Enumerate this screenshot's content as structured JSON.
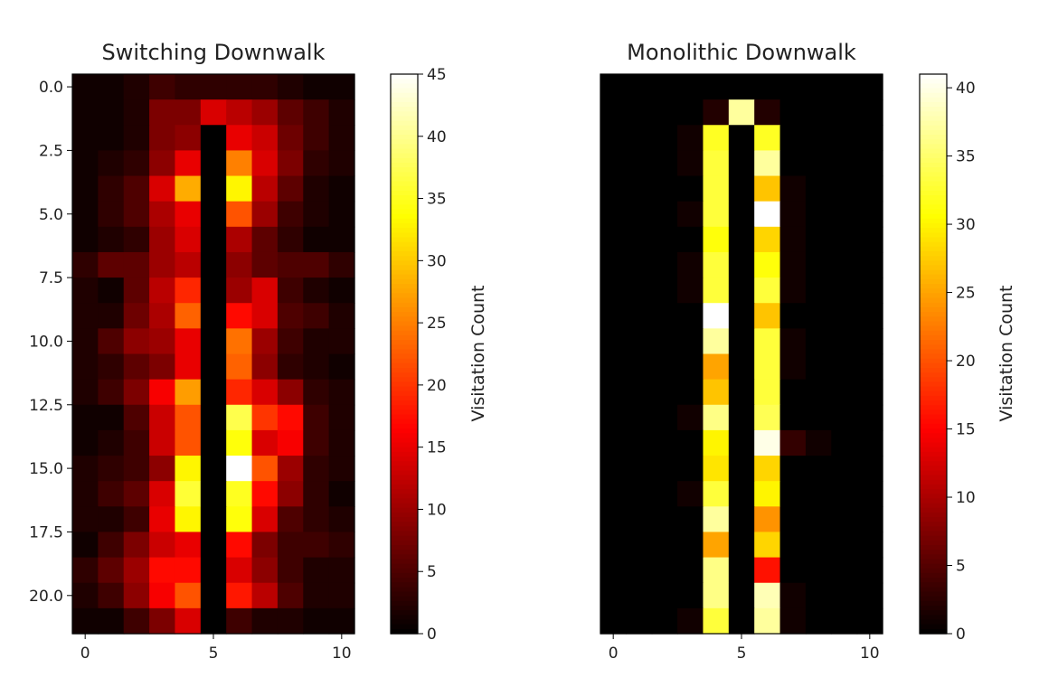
{
  "chart_data": [
    {
      "type": "heatmap",
      "title": "Switching Downwalk",
      "colormap": "hot",
      "colorbar_label": "Visitation Count",
      "vmin": 0,
      "vmax": 45,
      "colorbar_ticks": [
        "0",
        "5",
        "10",
        "15",
        "20",
        "25",
        "30",
        "35",
        "40",
        "45"
      ],
      "x_ticks": [
        "0",
        "5",
        "10"
      ],
      "y_ticks": [
        "0.0",
        "2.5",
        "5.0",
        "7.5",
        "10.0",
        "12.5",
        "15.0",
        "17.5",
        "20.0"
      ],
      "xlim": [
        -0.5,
        10.5
      ],
      "ylim": [
        -0.5,
        21.5
      ],
      "values": [
        [
          1,
          1,
          2,
          4,
          3,
          3,
          3,
          3,
          2,
          1,
          1
        ],
        [
          1,
          1,
          2,
          8,
          8,
          14,
          12,
          10,
          6,
          4,
          2
        ],
        [
          1,
          1,
          2,
          8,
          9,
          0,
          15,
          13,
          7,
          4,
          2
        ],
        [
          1,
          2,
          3,
          9,
          15,
          0,
          25,
          14,
          8,
          3,
          2
        ],
        [
          1,
          3,
          5,
          14,
          28,
          0,
          33,
          12,
          6,
          2,
          1
        ],
        [
          1,
          3,
          5,
          11,
          15,
          0,
          22,
          10,
          4,
          2,
          1
        ],
        [
          1,
          2,
          3,
          10,
          14,
          0,
          11,
          6,
          3,
          1,
          1
        ],
        [
          3,
          6,
          6,
          10,
          12,
          0,
          9,
          6,
          5,
          5,
          3
        ],
        [
          2,
          1,
          6,
          12,
          19,
          0,
          10,
          14,
          4,
          2,
          1
        ],
        [
          2,
          2,
          7,
          11,
          23,
          0,
          17,
          14,
          5,
          4,
          2
        ],
        [
          2,
          5,
          9,
          10,
          15,
          0,
          24,
          10,
          4,
          2,
          2
        ],
        [
          2,
          3,
          6,
          8,
          15,
          0,
          23,
          9,
          3,
          2,
          1
        ],
        [
          2,
          4,
          8,
          16,
          27,
          0,
          19,
          14,
          9,
          3,
          2
        ],
        [
          1,
          1,
          5,
          13,
          22,
          0,
          37,
          20,
          17,
          4,
          2
        ],
        [
          1,
          2,
          4,
          13,
          22,
          0,
          34,
          14,
          16,
          4,
          2
        ],
        [
          2,
          3,
          4,
          9,
          33,
          0,
          45,
          22,
          10,
          3,
          2
        ],
        [
          2,
          4,
          6,
          14,
          36,
          0,
          35,
          17,
          9,
          3,
          1
        ],
        [
          2,
          2,
          4,
          15,
          33,
          0,
          34,
          14,
          5,
          3,
          2
        ],
        [
          1,
          4,
          8,
          13,
          15,
          0,
          17,
          8,
          4,
          4,
          3
        ],
        [
          3,
          6,
          10,
          17,
          17,
          0,
          14,
          9,
          4,
          2,
          2
        ],
        [
          2,
          4,
          9,
          16,
          22,
          0,
          18,
          12,
          5,
          2,
          2
        ],
        [
          1,
          1,
          4,
          8,
          14,
          0,
          4,
          2,
          2,
          1,
          1
        ]
      ]
    },
    {
      "type": "heatmap",
      "title": "Monolithic Downwalk",
      "colormap": "hot",
      "colorbar_label": "Visitation Count",
      "vmin": 0,
      "vmax": 41,
      "colorbar_ticks": [
        "0",
        "5",
        "10",
        "15",
        "20",
        "25",
        "30",
        "35",
        "40"
      ],
      "x_ticks": [
        "0",
        "5",
        "10"
      ],
      "y_ticks": [],
      "xlim": [
        -0.5,
        10.5
      ],
      "ylim": [
        -0.5,
        21.5
      ],
      "values": [
        [
          0,
          0,
          0,
          0,
          0,
          0,
          0,
          0,
          0,
          0,
          0
        ],
        [
          0,
          0,
          0,
          0,
          2,
          37,
          2,
          0,
          0,
          0,
          0
        ],
        [
          0,
          0,
          0,
          1,
          32,
          0,
          32,
          0,
          0,
          0,
          0
        ],
        [
          0,
          0,
          0,
          1,
          33,
          0,
          37,
          0,
          0,
          0,
          0
        ],
        [
          0,
          0,
          0,
          0,
          33,
          0,
          27,
          1,
          0,
          0,
          0
        ],
        [
          0,
          0,
          0,
          1,
          33,
          0,
          41,
          1,
          0,
          0,
          0
        ],
        [
          0,
          0,
          0,
          0,
          31,
          0,
          28,
          1,
          0,
          0,
          0
        ],
        [
          0,
          0,
          0,
          1,
          33,
          0,
          31,
          1,
          0,
          0,
          0
        ],
        [
          0,
          0,
          0,
          1,
          33,
          0,
          33,
          1,
          0,
          0,
          0
        ],
        [
          0,
          0,
          0,
          0,
          41,
          0,
          27,
          0,
          0,
          0,
          0
        ],
        [
          0,
          0,
          0,
          0,
          37,
          0,
          33,
          1,
          0,
          0,
          0
        ],
        [
          0,
          0,
          0,
          0,
          25,
          0,
          33,
          1,
          0,
          0,
          0
        ],
        [
          0,
          0,
          0,
          0,
          27,
          0,
          33,
          0,
          0,
          0,
          0
        ],
        [
          0,
          0,
          0,
          1,
          36,
          0,
          34,
          0,
          0,
          0,
          0
        ],
        [
          0,
          0,
          0,
          0,
          30,
          0,
          40,
          3,
          1,
          0,
          0
        ],
        [
          0,
          0,
          0,
          0,
          29,
          0,
          28,
          0,
          0,
          0,
          0
        ],
        [
          0,
          0,
          0,
          1,
          33,
          0,
          30,
          0,
          0,
          0,
          0
        ],
        [
          0,
          0,
          0,
          0,
          37,
          0,
          24,
          0,
          0,
          0,
          0
        ],
        [
          0,
          0,
          0,
          0,
          25,
          0,
          28,
          0,
          0,
          0,
          0
        ],
        [
          0,
          0,
          0,
          0,
          36,
          0,
          16,
          0,
          0,
          0,
          0
        ],
        [
          0,
          0,
          0,
          0,
          36,
          0,
          38,
          1,
          0,
          0,
          0
        ],
        [
          0,
          0,
          0,
          1,
          33,
          0,
          37,
          1,
          0,
          0,
          0
        ]
      ]
    }
  ]
}
